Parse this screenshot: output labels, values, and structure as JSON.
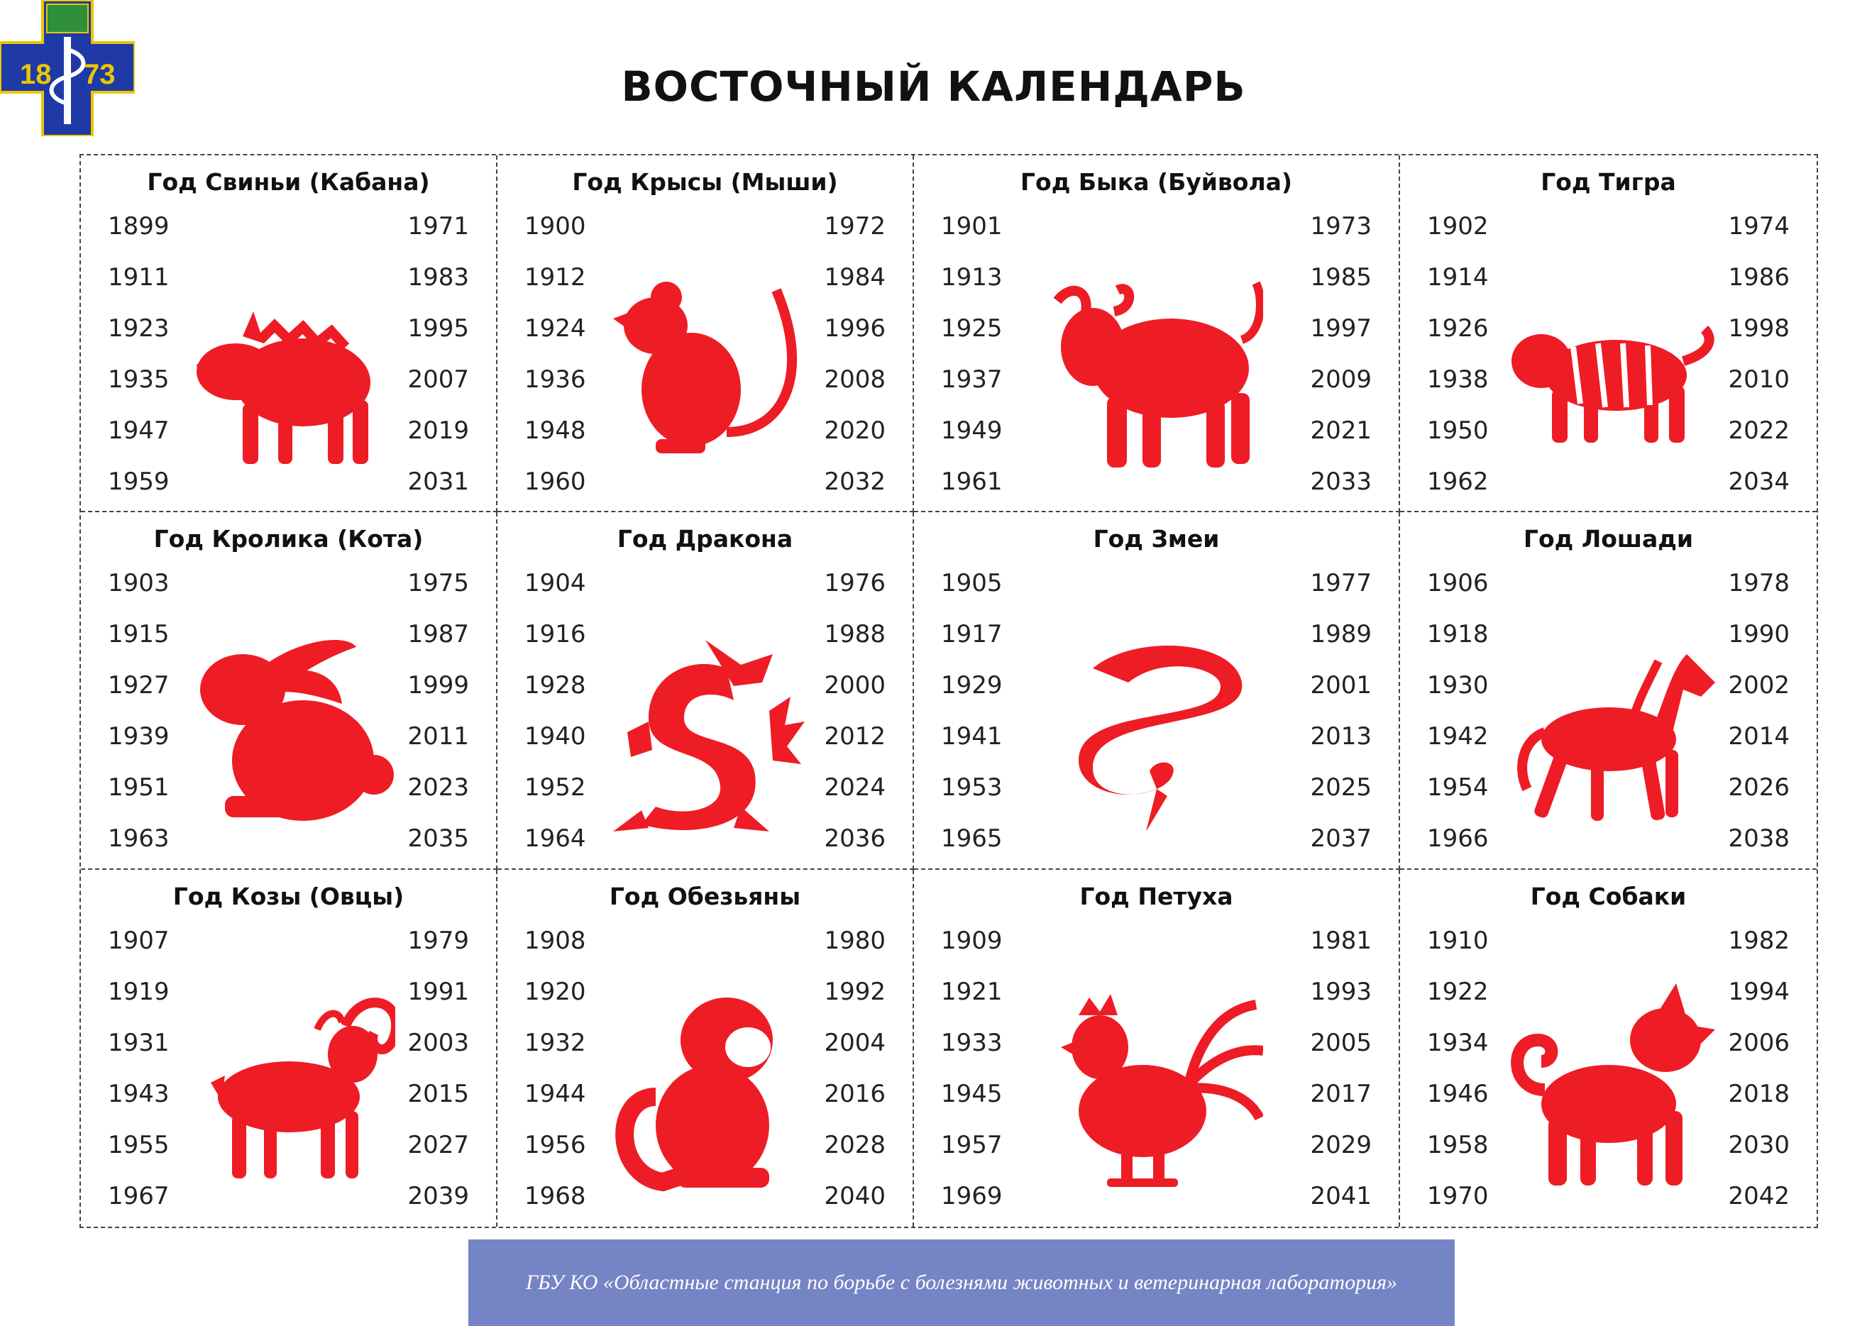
{
  "logo": {
    "year_left": "18",
    "year_right": "73",
    "colors": {
      "cross": "#1f3aa6",
      "border": "#e8c700",
      "accent": "#ffffff"
    }
  },
  "title": "ВОСТОЧНЫЙ КАЛЕНДАРЬ",
  "accent_color": "#ee1c25",
  "cells": [
    {
      "title": "Год Свиньи (Кабана)",
      "icon": "boar-icon",
      "left": [
        "1899",
        "1911",
        "1923",
        "1935",
        "1947",
        "1959"
      ],
      "right": [
        "1971",
        "1983",
        "1995",
        "2007",
        "2019",
        "2031"
      ]
    },
    {
      "title": "Год Крысы (Мыши)",
      "icon": "rat-icon",
      "left": [
        "1900",
        "1912",
        "1924",
        "1936",
        "1948",
        "1960"
      ],
      "right": [
        "1972",
        "1984",
        "1996",
        "2008",
        "2020",
        "2032"
      ]
    },
    {
      "title": "Год Быка (Буйвола)",
      "icon": "ox-icon",
      "left": [
        "1901",
        "1913",
        "1925",
        "1937",
        "1949",
        "1961"
      ],
      "right": [
        "1973",
        "1985",
        "1997",
        "2009",
        "2021",
        "2033"
      ]
    },
    {
      "title": "Год Тигра",
      "icon": "tiger-icon",
      "left": [
        "1902",
        "1914",
        "1926",
        "1938",
        "1950",
        "1962"
      ],
      "right": [
        "1974",
        "1986",
        "1998",
        "2010",
        "2022",
        "2034"
      ]
    },
    {
      "title": "Год Кролика (Кота)",
      "icon": "rabbit-icon",
      "left": [
        "1903",
        "1915",
        "1927",
        "1939",
        "1951",
        "1963"
      ],
      "right": [
        "1975",
        "1987",
        "1999",
        "2011",
        "2023",
        "2035"
      ]
    },
    {
      "title": "Год Дракона",
      "icon": "dragon-icon",
      "left": [
        "1904",
        "1916",
        "1928",
        "1940",
        "1952",
        "1964"
      ],
      "right": [
        "1976",
        "1988",
        "2000",
        "2012",
        "2024",
        "2036"
      ]
    },
    {
      "title": "Год Змеи",
      "icon": "snake-icon",
      "left": [
        "1905",
        "1917",
        "1929",
        "1941",
        "1953",
        "1965"
      ],
      "right": [
        "1977",
        "1989",
        "2001",
        "2013",
        "2025",
        "2037"
      ]
    },
    {
      "title": "Год Лошади",
      "icon": "horse-icon",
      "left": [
        "1906",
        "1918",
        "1930",
        "1942",
        "1954",
        "1966"
      ],
      "right": [
        "1978",
        "1990",
        "2002",
        "2014",
        "2026",
        "2038"
      ]
    },
    {
      "title": "Год Козы (Овцы)",
      "icon": "goat-icon",
      "left": [
        "1907",
        "1919",
        "1931",
        "1943",
        "1955",
        "1967"
      ],
      "right": [
        "1979",
        "1991",
        "2003",
        "2015",
        "2027",
        "2039"
      ]
    },
    {
      "title": "Год Обезьяны",
      "icon": "monkey-icon",
      "left": [
        "1908",
        "1920",
        "1932",
        "1944",
        "1956",
        "1968"
      ],
      "right": [
        "1980",
        "1992",
        "2004",
        "2016",
        "2028",
        "2040"
      ]
    },
    {
      "title": "Год Петуха",
      "icon": "rooster-icon",
      "left": [
        "1909",
        "1921",
        "1933",
        "1945",
        "1957",
        "1969"
      ],
      "right": [
        "1981",
        "1993",
        "2005",
        "2017",
        "2029",
        "2041"
      ]
    },
    {
      "title": "Год Собаки",
      "icon": "dog-icon",
      "left": [
        "1910",
        "1922",
        "1934",
        "1946",
        "1958",
        "1970"
      ],
      "right": [
        "1982",
        "1994",
        "2006",
        "2018",
        "2030",
        "2042"
      ]
    }
  ],
  "footer": "ГБУ КО «Областные станция по борьбе с болезнями животных и ветеринарная лаборатория»"
}
